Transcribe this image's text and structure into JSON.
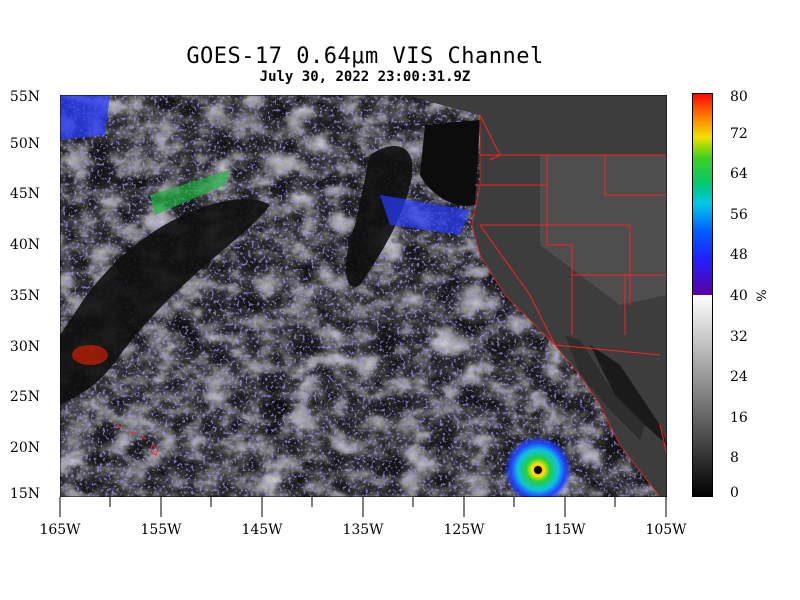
{
  "title": "GOES-17  0.64μm VIS Channel",
  "subtitle": "July 30,  2022 23:00:31.9Z",
  "lat_labels": [
    "55N",
    "50N",
    "45N",
    "40N",
    "35N",
    "30N",
    "25N",
    "20N",
    "15N"
  ],
  "lon_labels": [
    "165W",
    "155W",
    "145W",
    "135W",
    "125W",
    "115W",
    "105W"
  ],
  "colorbar": {
    "labels": [
      "80",
      "72",
      "64",
      "56",
      "48",
      "40",
      "32",
      "24",
      "16",
      "8",
      "0"
    ],
    "unit": "%",
    "gray_max": 40,
    "color_min": 40,
    "color_max": 80
  },
  "colors": {
    "ocean": "#141414",
    "land": "#3a3a3a",
    "border": "#ff2020",
    "cloud_bright": "#f2f2f2"
  }
}
